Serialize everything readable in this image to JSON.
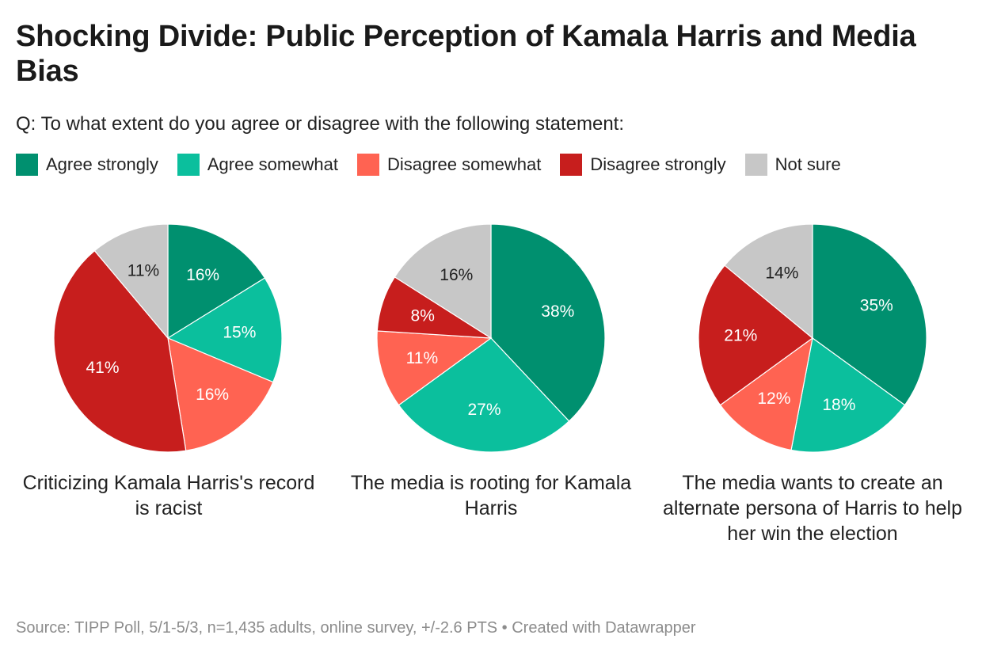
{
  "chart_data": {
    "type": "pie",
    "title": "Shocking Divide: Public Perception of Kamala Harris and Media Bias",
    "subtitle": "Q: To what extent do you agree or disagree with the following statement:",
    "legend": [
      {
        "label": "Agree strongly",
        "color": "#00906f"
      },
      {
        "label": "Agree somewhat",
        "color": "#0bbf9d"
      },
      {
        "label": "Disagree somewhat",
        "color": "#ff6352"
      },
      {
        "label": "Disagree strongly",
        "color": "#c71e1d"
      },
      {
        "label": "Not sure",
        "color": "#c7c7c7"
      }
    ],
    "pies": [
      {
        "caption": "Criticizing Kamala Harris's record is racist",
        "values": [
          16,
          15,
          16,
          41,
          11
        ],
        "labels": [
          "16%",
          "15%",
          "16%",
          "41%",
          "11%"
        ]
      },
      {
        "caption": "The media is rooting for Kamala Harris",
        "values": [
          38,
          27,
          11,
          8,
          16
        ],
        "labels": [
          "38%",
          "27%",
          "11%",
          "8%",
          "16%"
        ]
      },
      {
        "caption": "The media wants to create an alternate persona of Harris to help her win the election",
        "values": [
          35,
          18,
          12,
          21,
          14
        ],
        "labels": [
          "35%",
          "18%",
          "12%",
          "21%",
          "14%"
        ]
      }
    ],
    "source": "Source: TIPP Poll, 5/1-5/3, n=1,435 adults, online survey, +/-2.6 PTS • Created with Datawrapper"
  }
}
